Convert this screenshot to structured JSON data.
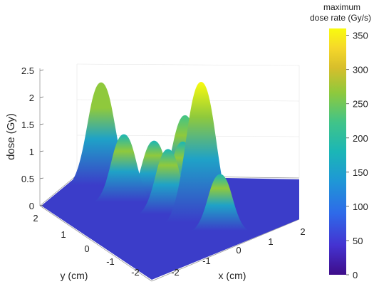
{
  "chart_data": {
    "type": "surface",
    "zlabel": "dose (Gy)",
    "xlabel": "x (cm)",
    "ylabel": "y (cm)",
    "z_ticks": [
      "0",
      "0.5",
      "1",
      "1.5",
      "2",
      "2.5"
    ],
    "x_ticks": [
      "-2",
      "-1",
      "0",
      "1",
      "2"
    ],
    "y_ticks": [
      "2",
      "1",
      "0",
      "-1",
      "-2"
    ],
    "zlim": [
      0,
      2.7
    ],
    "xlim": [
      -2.5,
      2.5
    ],
    "ylim": [
      -2.5,
      2.5
    ],
    "peaks": [
      {
        "x": -1.8,
        "y": 1.4,
        "dose": 1.9
      },
      {
        "x": 0.9,
        "y": -1.2,
        "dose": 2.6
      },
      {
        "x": 0.2,
        "y": 0.8,
        "dose": 1.5
      },
      {
        "x": -0.4,
        "y": 0.2,
        "dose": 1.1
      },
      {
        "x": 0.3,
        "y": -0.1,
        "dose": 1.2
      },
      {
        "x": -1.0,
        "y": -0.3,
        "dose": 1.25
      },
      {
        "x": 0.1,
        "y": -0.9,
        "dose": 1.2
      },
      {
        "x": 1.4,
        "y": -1.6,
        "dose": 1.05
      }
    ],
    "colorbar": {
      "label_line1": "maximum",
      "label_line2": "dose rate (Gy/s)",
      "ticks": [
        "350",
        "300",
        "250",
        "200",
        "150",
        "100",
        "50",
        "0"
      ],
      "range": [
        0,
        360
      ],
      "colors": [
        "#3e0d8a",
        "#4433d1",
        "#2e6ae9",
        "#1f97d6",
        "#1bb6b6",
        "#41c488",
        "#8fc93c",
        "#d7be2b",
        "#f5d72a",
        "#f9fb0e"
      ]
    }
  }
}
